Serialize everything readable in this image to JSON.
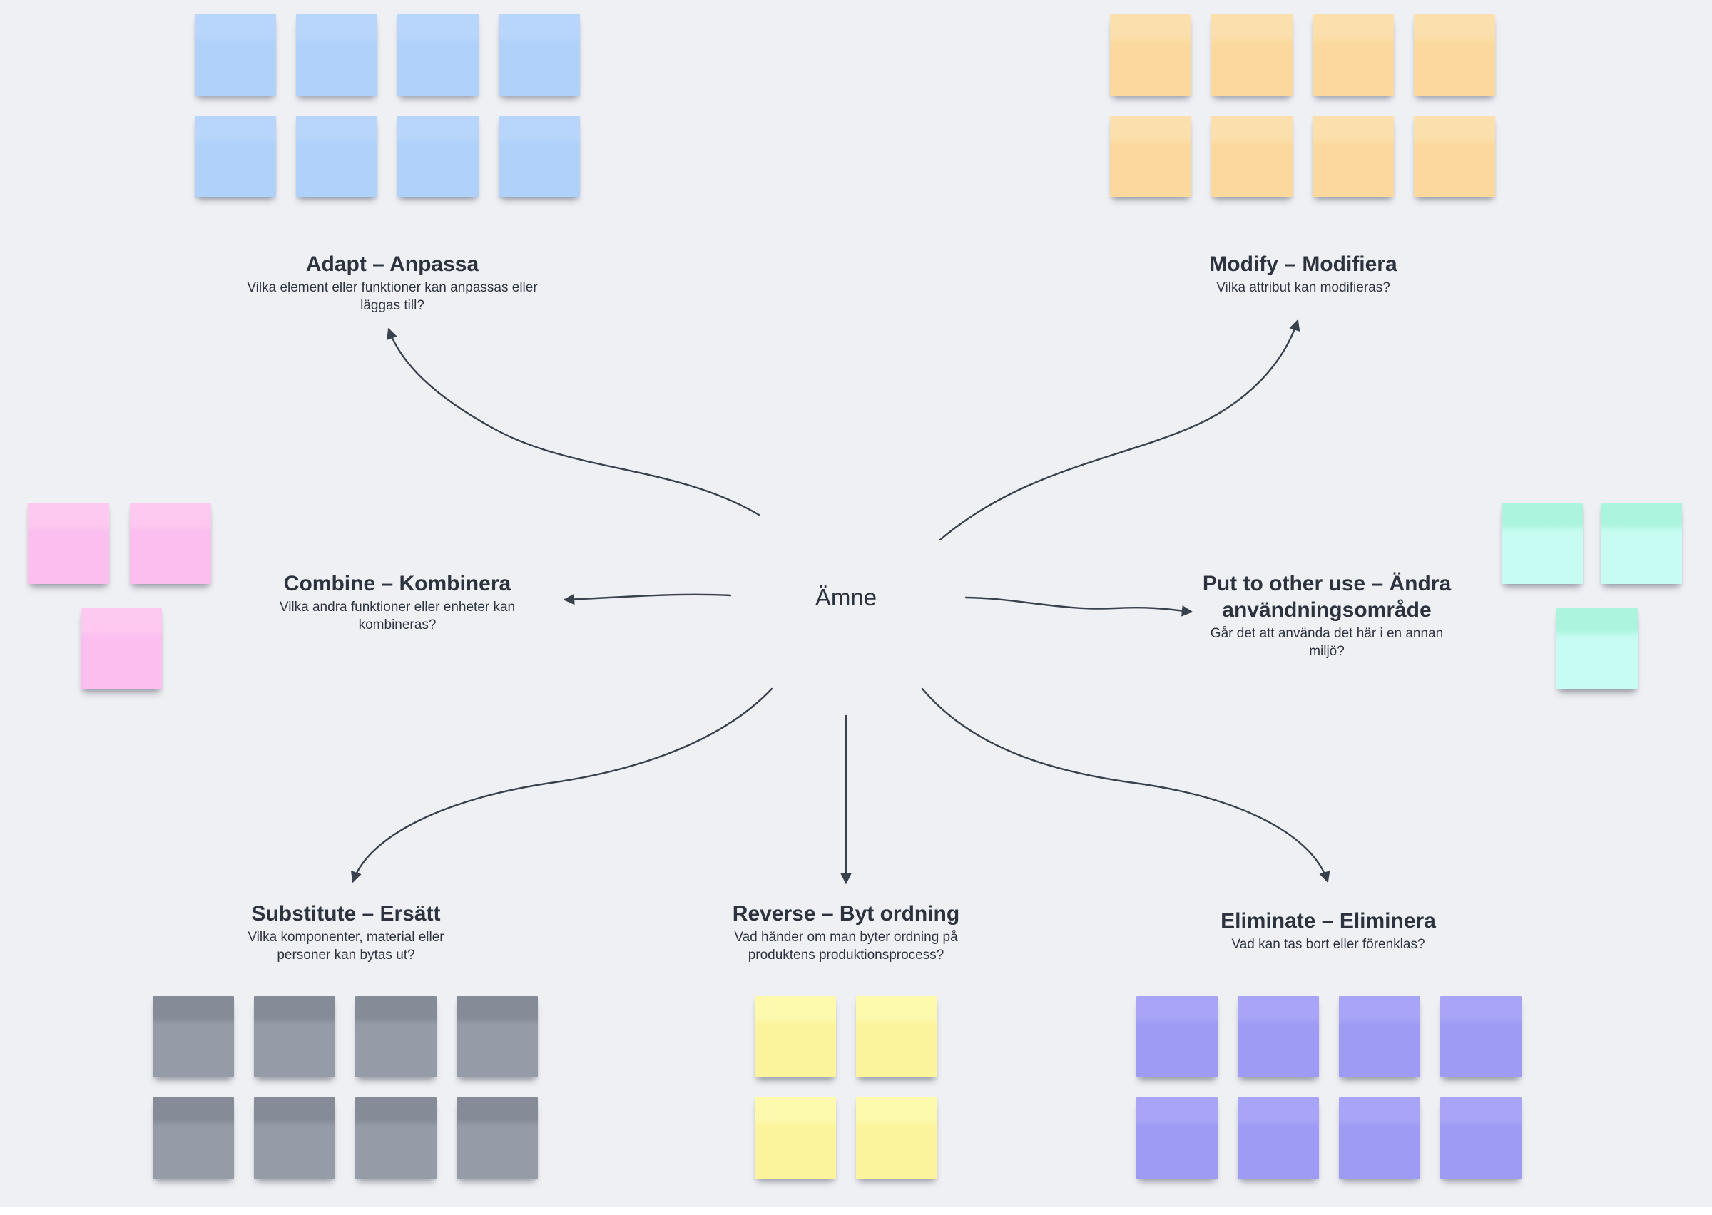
{
  "board": {
    "background_color": "#eff0f4",
    "connector_color": "#39414d",
    "text_color": "#2d333e",
    "center_label": "Ämne",
    "categories": [
      {
        "key": "adapt",
        "title": "Adapt – Anpassa",
        "subtitle": "Vilka element eller funktioner kan anpassas eller läggas till?",
        "note_count": 8,
        "note_color": {
          "top": "#b8d6fb",
          "bottom": "#afd1fa"
        }
      },
      {
        "key": "modify",
        "title": "Modify – Modifiera",
        "subtitle": "Vilka attribut kan modifieras?",
        "note_count": 8,
        "note_color": {
          "top": "#fbdfac",
          "bottom": "#fbd99e"
        }
      },
      {
        "key": "combine",
        "title": "Combine – Kombinera",
        "subtitle": "Vilka andra funktioner eller enheter kan kombineras?",
        "note_count": 3,
        "note_color": {
          "top": "#fdc9f1",
          "bottom": "#fcbeee"
        }
      },
      {
        "key": "put-to-other-use",
        "title": "Put to other use – Ändra användningsområde",
        "subtitle": "Går det att använda det här i en annan miljö?",
        "note_count": 3,
        "note_color": {
          "top": "#adf4df",
          "bottom": "#c6fcf2"
        }
      },
      {
        "key": "substitute",
        "title": "Substitute – Ersätt",
        "subtitle": "Vilka komponenter, material eller personer kan bytas ut?",
        "note_count": 8,
        "note_color": {
          "top": "#858c97",
          "bottom": "#959ca7"
        }
      },
      {
        "key": "reverse",
        "title": "Reverse – Byt ordning",
        "subtitle": "Vad händer om man byter ordning på produktens produktionsprocess?",
        "note_count": 4,
        "note_color": {
          "top": "#fdfaae",
          "bottom": "#fbf49c"
        }
      },
      {
        "key": "eliminate",
        "title": "Eliminate – Eliminera",
        "subtitle": "Vad kan tas bort eller förenklas?",
        "note_count": 8,
        "note_color": {
          "top": "#a8a5f8",
          "bottom": "#9e9bf4"
        }
      }
    ]
  }
}
